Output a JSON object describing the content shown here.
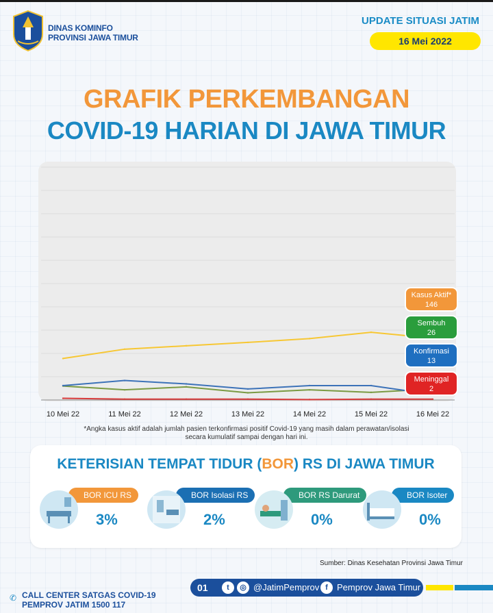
{
  "header": {
    "org_line1": "DINAS KOMINFO",
    "org_line2": "PROVINSI JAWA TIMUR",
    "update_label": "UPDATE SITUASI JATIM",
    "date": "16 Mei 2022"
  },
  "title": {
    "line1": "GRAFIK PERKEMBANGAN",
    "line2": "COVID-19 HARIAN DI JAWA TIMUR"
  },
  "colors": {
    "orange": "#f2973a",
    "blue_title": "#1a88c3",
    "yellow": "#ffe600",
    "navy": "#1b4f9c"
  },
  "chart_data": {
    "type": "line",
    "categories": [
      "10 Mei 22",
      "11 Mei 22",
      "12 Mei 22",
      "13 Mei 22",
      "14 Mei 22",
      "15 Mei 22",
      "16 Mei 22"
    ],
    "ylim": [
      0,
      550
    ],
    "grid": true,
    "series": [
      {
        "name": "Kasus Aktif",
        "label": "Kasus Aktif*",
        "value_label": "146",
        "color": "#f7c733",
        "badge_color": "#f2973a",
        "values": [
          98,
          120,
          128,
          136,
          145,
          160,
          146
        ]
      },
      {
        "name": "Sembuh",
        "label": "Sembuh",
        "value_label": "26",
        "color": "#7a9a42",
        "badge_color": "#2a9d3c",
        "values": [
          33,
          24,
          31,
          17,
          24,
          18,
          26
        ]
      },
      {
        "name": "Konfirmasi",
        "label": "Konfirmasi",
        "value_label": "13",
        "color": "#3c72b8",
        "badge_color": "#1f6fc0",
        "values": [
          34,
          46,
          38,
          26,
          34,
          34,
          13
        ]
      },
      {
        "name": "Meninggal",
        "label": "Meninggal",
        "value_label": "2",
        "color": "#d83a3a",
        "badge_color": "#e02424",
        "values": [
          4,
          2,
          2,
          2,
          1,
          2,
          2
        ]
      }
    ]
  },
  "note": {
    "line1": "*Angka kasus aktif adalah jumlah pasien terkonfirmasi positif Covid-19 yang masih dalam perawatan/isolasi",
    "line2": "secara kumulatif sampai dengan hari ini."
  },
  "bor": {
    "title_pre": "KETERISIAN TEMPAT TIDUR (",
    "title_hl": "BOR",
    "title_post": ") RS DI JAWA TIMUR",
    "items": [
      {
        "label": "BOR ICU RS",
        "value": "3%",
        "color": "#f2973a"
      },
      {
        "label": "BOR Isolasi RS",
        "value": "2%",
        "color": "#1b6fb3"
      },
      {
        "label": "BOR RS Darurat",
        "value": "0%",
        "color": "#2e9a7c"
      },
      {
        "label": "BOR Isoter",
        "value": "0%",
        "color": "#1a88c3"
      }
    ]
  },
  "source": "Sumber: Dinas Kesehatan Provinsi Jawa Timur",
  "footer": {
    "callcenter_line1": "CALL CENTER SATGAS COVID-19",
    "callcenter_line2": "PEMPROV JATIM 1500 117",
    "page": "01",
    "instagram": "@JatimPemprov",
    "facebook": "Pemprov Jawa Timur"
  }
}
